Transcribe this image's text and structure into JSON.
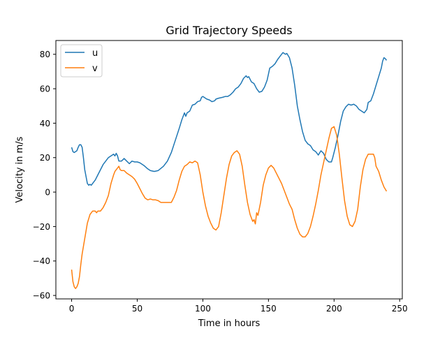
{
  "chart_data": {
    "type": "line",
    "title": "Grid Trajectory Speeds",
    "xlabel": "Time in hours",
    "ylabel": "Velocity in m/s",
    "xlim": [
      -12,
      252
    ],
    "ylim": [
      -62,
      88
    ],
    "xticks": [
      0,
      50,
      100,
      150,
      200,
      250
    ],
    "xtick_labels": [
      "0",
      "50",
      "100",
      "150",
      "200",
      "250"
    ],
    "yticks": [
      -60,
      -40,
      -20,
      0,
      20,
      40,
      60,
      80
    ],
    "ytick_labels": [
      "−60",
      "−40",
      "−20",
      "0",
      "20",
      "40",
      "60",
      "80"
    ],
    "grid": false,
    "legend_position": "upper-left",
    "series": [
      {
        "name": "u",
        "color": "#1f77b4",
        "points": [
          [
            0,
            26
          ],
          [
            1,
            23.5
          ],
          [
            2,
            23
          ],
          [
            3,
            23.5
          ],
          [
            4,
            24
          ],
          [
            5,
            26
          ],
          [
            6,
            27.5
          ],
          [
            7,
            27.5
          ],
          [
            8,
            26
          ],
          [
            9,
            20
          ],
          [
            10,
            13
          ],
          [
            11,
            9
          ],
          [
            12,
            5
          ],
          [
            13,
            4
          ],
          [
            14,
            4.5
          ],
          [
            15,
            4
          ],
          [
            16,
            5
          ],
          [
            18,
            7
          ],
          [
            20,
            10
          ],
          [
            22,
            13
          ],
          [
            24,
            16
          ],
          [
            26,
            18
          ],
          [
            28,
            20
          ],
          [
            30,
            21
          ],
          [
            32,
            22
          ],
          [
            33,
            21
          ],
          [
            34,
            22.5
          ],
          [
            35,
            21
          ],
          [
            36,
            18
          ],
          [
            38,
            18
          ],
          [
            40,
            19.5
          ],
          [
            42,
            18
          ],
          [
            44,
            16.5
          ],
          [
            46,
            18
          ],
          [
            48,
            17.5
          ],
          [
            50,
            17.5
          ],
          [
            52,
            17
          ],
          [
            55,
            15.5
          ],
          [
            58,
            13.5
          ],
          [
            60,
            12.5
          ],
          [
            63,
            12
          ],
          [
            66,
            12.5
          ],
          [
            70,
            15
          ],
          [
            73,
            18
          ],
          [
            76,
            23
          ],
          [
            79,
            30
          ],
          [
            82,
            37
          ],
          [
            84,
            42
          ],
          [
            86,
            46
          ],
          [
            87,
            44
          ],
          [
            88,
            46
          ],
          [
            90,
            47
          ],
          [
            92,
            50.5
          ],
          [
            94,
            51
          ],
          [
            96,
            52.5
          ],
          [
            98,
            53
          ],
          [
            99,
            55
          ],
          [
            100,
            55.5
          ],
          [
            101,
            55
          ],
          [
            103,
            54
          ],
          [
            105,
            53.5
          ],
          [
            107,
            52.5
          ],
          [
            109,
            53
          ],
          [
            110,
            54
          ],
          [
            112,
            54.5
          ],
          [
            115,
            55
          ],
          [
            117,
            55.5
          ],
          [
            119,
            55.5
          ],
          [
            121,
            56.5
          ],
          [
            123,
            58
          ],
          [
            125,
            60
          ],
          [
            127,
            61
          ],
          [
            129,
            63
          ],
          [
            131,
            66
          ],
          [
            133,
            67.5
          ],
          [
            134,
            66.5
          ],
          [
            135,
            67
          ],
          [
            137,
            64
          ],
          [
            139,
            63
          ],
          [
            141,
            60
          ],
          [
            143,
            58
          ],
          [
            145,
            58.5
          ],
          [
            147,
            61
          ],
          [
            149,
            65
          ],
          [
            151,
            72
          ],
          [
            153,
            73
          ],
          [
            155,
            74.5
          ],
          [
            157,
            77
          ],
          [
            159,
            79
          ],
          [
            161,
            81
          ],
          [
            163,
            80
          ],
          [
            164,
            80.5
          ],
          [
            166,
            78
          ],
          [
            168,
            72
          ],
          [
            170,
            62
          ],
          [
            172,
            50
          ],
          [
            174,
            42
          ],
          [
            176,
            35
          ],
          [
            178,
            30
          ],
          [
            180,
            28
          ],
          [
            182,
            27
          ],
          [
            184,
            24.5
          ],
          [
            186,
            23.5
          ],
          [
            188,
            21.5
          ],
          [
            190,
            24
          ],
          [
            192,
            22.5
          ],
          [
            194,
            19
          ],
          [
            196,
            17.5
          ],
          [
            198,
            17.5
          ],
          [
            199,
            20
          ],
          [
            201,
            26
          ],
          [
            203,
            33
          ],
          [
            205,
            41
          ],
          [
            207,
            47
          ],
          [
            209,
            49.5
          ],
          [
            211,
            51
          ],
          [
            213,
            50.5
          ],
          [
            215,
            51
          ],
          [
            217,
            50
          ],
          [
            219,
            48
          ],
          [
            221,
            47
          ],
          [
            223,
            46
          ],
          [
            225,
            48
          ],
          [
            226,
            52
          ],
          [
            228,
            53
          ],
          [
            230,
            57
          ],
          [
            232,
            62
          ],
          [
            234,
            67
          ],
          [
            236,
            72
          ],
          [
            237,
            76
          ],
          [
            238,
            78
          ],
          [
            239,
            77.5
          ],
          [
            240,
            76.5
          ]
        ]
      },
      {
        "name": "v",
        "color": "#ff7f0e",
        "points": [
          [
            0,
            -45
          ],
          [
            1,
            -52
          ],
          [
            2,
            -55
          ],
          [
            3,
            -56
          ],
          [
            4,
            -55
          ],
          [
            5,
            -53
          ],
          [
            6,
            -49
          ],
          [
            7,
            -42
          ],
          [
            8,
            -36
          ],
          [
            10,
            -27
          ],
          [
            12,
            -18
          ],
          [
            14,
            -13
          ],
          [
            16,
            -11
          ],
          [
            18,
            -11
          ],
          [
            19,
            -12
          ],
          [
            20,
            -11
          ],
          [
            22,
            -11
          ],
          [
            24,
            -9
          ],
          [
            26,
            -6
          ],
          [
            28,
            -2
          ],
          [
            30,
            5
          ],
          [
            32,
            10
          ],
          [
            33,
            12
          ],
          [
            35,
            14
          ],
          [
            36,
            15
          ],
          [
            37,
            13
          ],
          [
            38,
            12.5
          ],
          [
            40,
            12.5
          ],
          [
            42,
            11
          ],
          [
            44,
            10
          ],
          [
            46,
            9
          ],
          [
            48,
            7.5
          ],
          [
            50,
            5
          ],
          [
            52,
            2
          ],
          [
            54,
            -1
          ],
          [
            56,
            -3.5
          ],
          [
            58,
            -4.5
          ],
          [
            60,
            -4
          ],
          [
            62,
            -4.5
          ],
          [
            64,
            -4.5
          ],
          [
            66,
            -5
          ],
          [
            68,
            -6
          ],
          [
            70,
            -6
          ],
          [
            72,
            -6
          ],
          [
            74,
            -6
          ],
          [
            76,
            -6
          ],
          [
            78,
            -3
          ],
          [
            80,
            1
          ],
          [
            82,
            7
          ],
          [
            84,
            12
          ],
          [
            86,
            15
          ],
          [
            88,
            16
          ],
          [
            90,
            17.5
          ],
          [
            92,
            17
          ],
          [
            94,
            18
          ],
          [
            96,
            17
          ],
          [
            98,
            10
          ],
          [
            100,
            0
          ],
          [
            102,
            -8
          ],
          [
            104,
            -14
          ],
          [
            106,
            -18
          ],
          [
            108,
            -21
          ],
          [
            110,
            -22
          ],
          [
            112,
            -20
          ],
          [
            114,
            -12
          ],
          [
            116,
            -2
          ],
          [
            118,
            8
          ],
          [
            120,
            16
          ],
          [
            122,
            21
          ],
          [
            124,
            23
          ],
          [
            126,
            24
          ],
          [
            128,
            22
          ],
          [
            130,
            15
          ],
          [
            132,
            4
          ],
          [
            134,
            -6
          ],
          [
            136,
            -13
          ],
          [
            138,
            -17
          ],
          [
            139,
            -16
          ],
          [
            140,
            -18.5
          ],
          [
            141,
            -12
          ],
          [
            142,
            -13.5
          ],
          [
            144,
            -6
          ],
          [
            146,
            4
          ],
          [
            148,
            10
          ],
          [
            150,
            14
          ],
          [
            152,
            15.5
          ],
          [
            154,
            14
          ],
          [
            156,
            11
          ],
          [
            158,
            8
          ],
          [
            160,
            5
          ],
          [
            162,
            1
          ],
          [
            164,
            -3
          ],
          [
            166,
            -7
          ],
          [
            168,
            -10
          ],
          [
            170,
            -16
          ],
          [
            172,
            -21
          ],
          [
            174,
            -24.5
          ],
          [
            176,
            -26
          ],
          [
            178,
            -26
          ],
          [
            180,
            -24
          ],
          [
            182,
            -20
          ],
          [
            184,
            -14
          ],
          [
            186,
            -7
          ],
          [
            188,
            1
          ],
          [
            190,
            10
          ],
          [
            192,
            17
          ],
          [
            194,
            24
          ],
          [
            196,
            31
          ],
          [
            198,
            37
          ],
          [
            200,
            38
          ],
          [
            202,
            33
          ],
          [
            204,
            22
          ],
          [
            206,
            8
          ],
          [
            208,
            -5
          ],
          [
            210,
            -14
          ],
          [
            212,
            -19
          ],
          [
            214,
            -20
          ],
          [
            216,
            -17
          ],
          [
            218,
            -10
          ],
          [
            220,
            3
          ],
          [
            222,
            13
          ],
          [
            224,
            19
          ],
          [
            226,
            22
          ],
          [
            228,
            22
          ],
          [
            230,
            22
          ],
          [
            231,
            20
          ],
          [
            232,
            15
          ],
          [
            234,
            12
          ],
          [
            236,
            7
          ],
          [
            238,
            3
          ],
          [
            240,
            0.5
          ]
        ]
      }
    ]
  }
}
